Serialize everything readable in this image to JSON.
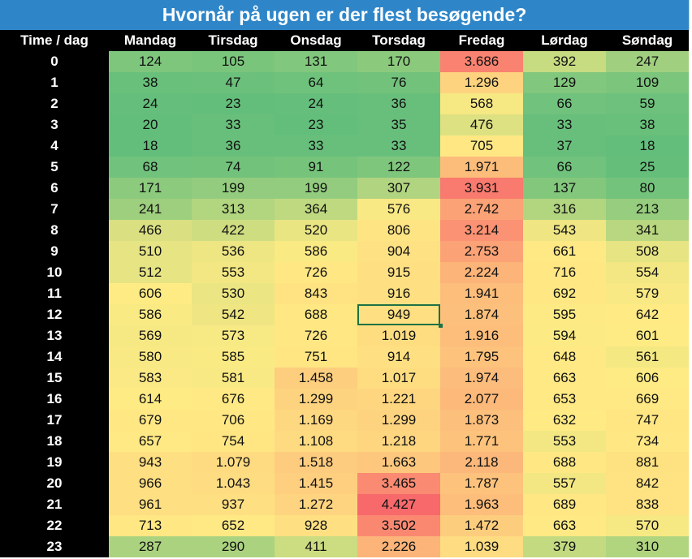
{
  "title": "Hvornår på ugen er der flest besøgende?",
  "table": {
    "corner_label": "Time / dag",
    "days": [
      "Mandag",
      "Tirsdag",
      "Onsdag",
      "Torsdag",
      "Fredag",
      "Lørdag",
      "Søndag"
    ],
    "selected_cell": {
      "row": 12,
      "col": 3
    },
    "rows": [
      {
        "hour": "0",
        "values": [
          "124",
          "105",
          "131",
          "170",
          "3.686",
          "392",
          "247"
        ]
      },
      {
        "hour": "1",
        "values": [
          "38",
          "47",
          "64",
          "76",
          "1.296",
          "129",
          "109"
        ]
      },
      {
        "hour": "2",
        "values": [
          "24",
          "23",
          "24",
          "36",
          "568",
          "66",
          "59"
        ]
      },
      {
        "hour": "3",
        "values": [
          "20",
          "33",
          "23",
          "35",
          "476",
          "33",
          "38"
        ]
      },
      {
        "hour": "4",
        "values": [
          "18",
          "36",
          "33",
          "33",
          "705",
          "37",
          "18"
        ]
      },
      {
        "hour": "5",
        "values": [
          "68",
          "74",
          "91",
          "122",
          "1.971",
          "66",
          "25"
        ]
      },
      {
        "hour": "6",
        "values": [
          "171",
          "199",
          "199",
          "307",
          "3.931",
          "137",
          "80"
        ]
      },
      {
        "hour": "7",
        "values": [
          "241",
          "313",
          "364",
          "576",
          "2.742",
          "316",
          "213"
        ]
      },
      {
        "hour": "8",
        "values": [
          "466",
          "422",
          "520",
          "806",
          "3.214",
          "543",
          "341"
        ]
      },
      {
        "hour": "9",
        "values": [
          "510",
          "536",
          "586",
          "904",
          "2.753",
          "661",
          "508"
        ]
      },
      {
        "hour": "10",
        "values": [
          "512",
          "553",
          "726",
          "915",
          "2.224",
          "716",
          "554"
        ]
      },
      {
        "hour": "11",
        "values": [
          "606",
          "530",
          "843",
          "916",
          "1.941",
          "692",
          "579"
        ]
      },
      {
        "hour": "12",
        "values": [
          "586",
          "542",
          "688",
          "949",
          "1.874",
          "595",
          "642"
        ]
      },
      {
        "hour": "13",
        "values": [
          "569",
          "573",
          "726",
          "1.019",
          "1.916",
          "594",
          "601"
        ]
      },
      {
        "hour": "14",
        "values": [
          "580",
          "585",
          "751",
          "914",
          "1.795",
          "648",
          "561"
        ]
      },
      {
        "hour": "15",
        "values": [
          "583",
          "581",
          "1.458",
          "1.017",
          "1.974",
          "663",
          "606"
        ]
      },
      {
        "hour": "16",
        "values": [
          "614",
          "676",
          "1.299",
          "1.221",
          "2.077",
          "653",
          "669"
        ]
      },
      {
        "hour": "17",
        "values": [
          "679",
          "706",
          "1.169",
          "1.299",
          "1.873",
          "632",
          "747"
        ]
      },
      {
        "hour": "18",
        "values": [
          "657",
          "754",
          "1.108",
          "1.218",
          "1.771",
          "553",
          "734"
        ]
      },
      {
        "hour": "19",
        "values": [
          "943",
          "1.079",
          "1.518",
          "1.663",
          "2.118",
          "688",
          "881"
        ]
      },
      {
        "hour": "20",
        "values": [
          "966",
          "1.043",
          "1.415",
          "3.465",
          "1.787",
          "557",
          "842"
        ]
      },
      {
        "hour": "21",
        "values": [
          "961",
          "937",
          "1.272",
          "4.427",
          "1.963",
          "689",
          "838"
        ]
      },
      {
        "hour": "22",
        "values": [
          "713",
          "652",
          "928",
          "3.502",
          "1.472",
          "663",
          "570"
        ]
      },
      {
        "hour": "23",
        "values": [
          "287",
          "290",
          "411",
          "2.226",
          "1.039",
          "379",
          "310"
        ]
      }
    ]
  },
  "colors": {
    "title_bg": "#2e86c9",
    "header_bg": "#000000",
    "scale_low": "#63be7b",
    "scale_mid": "#ffeb84",
    "scale_high": "#f8696b",
    "selection": "#1e7145"
  }
}
